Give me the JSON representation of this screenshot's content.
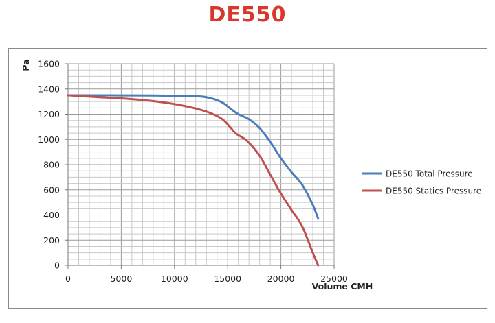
{
  "title": "DE550",
  "chart_data": {
    "type": "line",
    "title": "DE550",
    "xlabel": "Volume CMH",
    "ylabel": "Pa",
    "xlim": [
      0,
      25000
    ],
    "ylim": [
      0,
      1600
    ],
    "x_ticks": [
      0,
      5000,
      10000,
      15000,
      20000,
      25000
    ],
    "y_ticks": [
      0,
      200,
      400,
      600,
      800,
      1000,
      1200,
      1400,
      1600
    ],
    "grid": true,
    "legend_position": "right",
    "series": [
      {
        "name": "DE550 Total Pressure",
        "color": "#4a7ebb",
        "points": [
          [
            0,
            1350
          ],
          [
            2000,
            1350
          ],
          [
            5000,
            1349
          ],
          [
            8000,
            1348
          ],
          [
            11000,
            1345
          ],
          [
            12500,
            1340
          ],
          [
            13500,
            1325
          ],
          [
            14500,
            1292
          ],
          [
            15300,
            1242
          ],
          [
            16000,
            1200
          ],
          [
            17000,
            1160
          ],
          [
            18000,
            1090
          ],
          [
            19000,
            980
          ],
          [
            20000,
            850
          ],
          [
            21000,
            740
          ],
          [
            22000,
            640
          ],
          [
            23000,
            480
          ],
          [
            23500,
            370
          ]
        ]
      },
      {
        "name": "DE550 Statics Pressure",
        "color": "#c0504d",
        "points": [
          [
            0,
            1350
          ],
          [
            2500,
            1337
          ],
          [
            5000,
            1325
          ],
          [
            7500,
            1308
          ],
          [
            10000,
            1280
          ],
          [
            12000,
            1245
          ],
          [
            13500,
            1205
          ],
          [
            14500,
            1160
          ],
          [
            15200,
            1100
          ],
          [
            15800,
            1045
          ],
          [
            16800,
            990
          ],
          [
            18000,
            870
          ],
          [
            19000,
            720
          ],
          [
            20000,
            570
          ],
          [
            21000,
            440
          ],
          [
            22000,
            310
          ],
          [
            23000,
            100
          ],
          [
            23500,
            0
          ]
        ]
      }
    ]
  }
}
